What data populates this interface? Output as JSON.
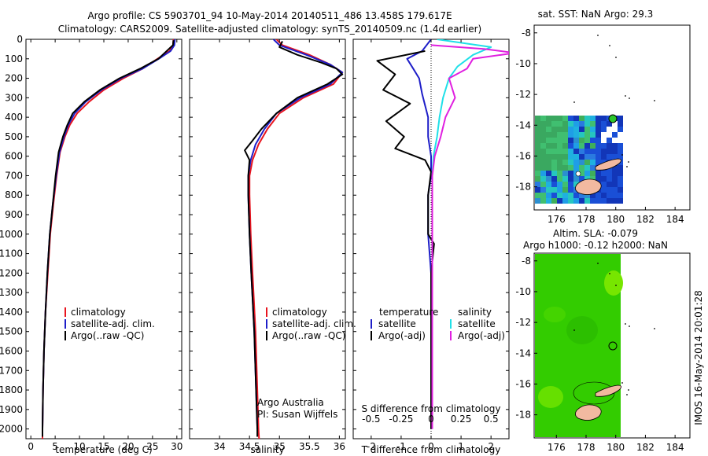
{
  "header": {
    "line1": "Argo profile: CS 5903701_94 10-May-2014 20140511_486 13.458S 179.617E",
    "line2": "Climatology: CARS2009. Satellite-adjusted climatology: synTS_20140509.nc (1.4d earlier)"
  },
  "colors": {
    "climatology": "#e8141e",
    "satellite": "#1e1ec8",
    "argo": "#000000",
    "cyan": "#20e0e8",
    "magenta": "#e020e0"
  },
  "chart_data": [
    {
      "type": "line",
      "id": "temperature",
      "xlabel": "temperature (deg C)",
      "ylabel": "",
      "xlim": [
        -1,
        31
      ],
      "ylim": [
        2050,
        0
      ],
      "xticks": [
        0,
        5,
        10,
        15,
        20,
        25,
        30
      ],
      "yticks": [
        0,
        100,
        200,
        300,
        400,
        500,
        600,
        700,
        800,
        900,
        1000,
        1100,
        1200,
        1300,
        1400,
        1500,
        1600,
        1700,
        1800,
        1900,
        2000
      ],
      "legend": [
        "climatology",
        "satellite-adj. clim.",
        "Argo(..raw -QC)"
      ],
      "series": [
        {
          "name": "climatology",
          "color": "#e8141e",
          "points": [
            [
              29.3,
              0
            ],
            [
              29.2,
              30
            ],
            [
              28.5,
              60
            ],
            [
              26,
              100
            ],
            [
              23,
              150
            ],
            [
              19,
              200
            ],
            [
              15,
              260
            ],
            [
              12,
              320
            ],
            [
              9.5,
              380
            ],
            [
              8,
              440
            ],
            [
              7,
              500
            ],
            [
              6,
              580
            ],
            [
              5.3,
              700
            ],
            [
              4.6,
              850
            ],
            [
              4,
              1000
            ],
            [
              3.5,
              1200
            ],
            [
              3,
              1400
            ],
            [
              2.7,
              1600
            ],
            [
              2.5,
              1800
            ],
            [
              2.4,
              2000
            ],
            [
              2.4,
              2050
            ]
          ]
        },
        {
          "name": "satellite-adj. clim.",
          "color": "#1e1ec8",
          "points": [
            [
              29.6,
              0
            ],
            [
              29.5,
              30
            ],
            [
              28.7,
              60
            ],
            [
              26.3,
              100
            ],
            [
              23,
              150
            ],
            [
              18.5,
              200
            ],
            [
              14.5,
              260
            ],
            [
              11.3,
              320
            ],
            [
              9,
              380
            ],
            [
              7.7,
              440
            ],
            [
              6.8,
              500
            ],
            [
              5.9,
              580
            ],
            [
              5.2,
              700
            ],
            [
              4.5,
              850
            ],
            [
              3.9,
              1000
            ],
            [
              3.4,
              1200
            ],
            [
              3,
              1400
            ],
            [
              2.7,
              1600
            ],
            [
              2.5,
              1800
            ],
            [
              2.4,
              2000
            ]
          ]
        },
        {
          "name": "Argo(..raw -QC)",
          "color": "#000000",
          "points": [
            [
              29.3,
              5
            ],
            [
              29.2,
              30
            ],
            [
              27.5,
              70
            ],
            [
              26.2,
              100
            ],
            [
              22.5,
              150
            ],
            [
              18.2,
              200
            ],
            [
              14.2,
              260
            ],
            [
              11,
              320
            ],
            [
              8.6,
              380
            ],
            [
              7.5,
              440
            ],
            [
              6.6,
              500
            ],
            [
              5.7,
              580
            ],
            [
              5.1,
              700
            ],
            [
              4.5,
              850
            ],
            [
              3.9,
              1000
            ],
            [
              3.4,
              1200
            ],
            [
              3,
              1400
            ],
            [
              2.7,
              1600
            ],
            [
              2.5,
              1800
            ],
            [
              2.4,
              2000
            ],
            [
              2.4,
              2040
            ]
          ]
        }
      ]
    },
    {
      "type": "line",
      "id": "salinity",
      "xlabel": "salinity",
      "ylabel": "",
      "xlim": [
        33.5,
        36.1
      ],
      "ylim": [
        2050,
        0
      ],
      "xticks": [
        34,
        34.5,
        35,
        35.5,
        36
      ],
      "xticklabels": [
        "34",
        "34.5",
        "35",
        "35.5",
        "36"
      ],
      "legend": [
        "climatology",
        "satellite-adj. clim.",
        "Argo(..raw -QC)"
      ],
      "annotations": [
        "Argo Australia",
        "PI: Susan Wijffels"
      ],
      "series": [
        {
          "name": "climatology",
          "color": "#e8141e",
          "points": [
            [
              34.95,
              0
            ],
            [
              35.05,
              30
            ],
            [
              35.5,
              80
            ],
            [
              35.85,
              130
            ],
            [
              36.05,
              170
            ],
            [
              35.9,
              230
            ],
            [
              35.4,
              300
            ],
            [
              35,
              380
            ],
            [
              34.8,
              460
            ],
            [
              34.65,
              540
            ],
            [
              34.55,
              620
            ],
            [
              34.5,
              700
            ],
            [
              34.5,
              800
            ],
            [
              34.52,
              1000
            ],
            [
              34.55,
              1200
            ],
            [
              34.6,
              1500
            ],
            [
              34.63,
              1800
            ],
            [
              34.65,
              2000
            ],
            [
              34.66,
              2050
            ]
          ]
        },
        {
          "name": "satellite-adj. clim.",
          "color": "#1e1ec8",
          "points": [
            [
              34.9,
              0
            ],
            [
              35,
              30
            ],
            [
              35.45,
              80
            ],
            [
              35.85,
              130
            ],
            [
              36.05,
              170
            ],
            [
              35.85,
              230
            ],
            [
              35.35,
              300
            ],
            [
              34.95,
              380
            ],
            [
              34.75,
              460
            ],
            [
              34.6,
              540
            ],
            [
              34.52,
              620
            ],
            [
              34.48,
              700
            ],
            [
              34.48,
              800
            ],
            [
              34.5,
              1000
            ],
            [
              34.53,
              1200
            ],
            [
              34.58,
              1500
            ],
            [
              34.61,
              1800
            ],
            [
              34.63,
              2000
            ]
          ]
        },
        {
          "name": "Argo(..raw -QC)",
          "color": "#000000",
          "points": [
            [
              35.05,
              10
            ],
            [
              35,
              40
            ],
            [
              35.3,
              80
            ],
            [
              35.7,
              120
            ],
            [
              35.95,
              150
            ],
            [
              36.05,
              180
            ],
            [
              35.8,
              230
            ],
            [
              35.3,
              300
            ],
            [
              34.95,
              380
            ],
            [
              34.7,
              460
            ],
            [
              34.55,
              520
            ],
            [
              34.42,
              570
            ],
            [
              34.5,
              620
            ],
            [
              34.48,
              700
            ],
            [
              34.48,
              800
            ],
            [
              34.5,
              1000
            ],
            [
              34.53,
              1200
            ],
            [
              34.58,
              1500
            ],
            [
              34.61,
              1800
            ],
            [
              34.63,
              2000
            ],
            [
              34.63,
              2040
            ]
          ]
        }
      ]
    },
    {
      "type": "line",
      "id": "difference",
      "xlabel": "T difference from climatology",
      "xlabel_top": "S difference from climatology",
      "xlim": [
        -2.6,
        2.6
      ],
      "ylim": [
        2050,
        0
      ],
      "xticks": [
        -2,
        -1,
        0,
        1,
        2
      ],
      "xticks_top": [
        -0.5,
        -0.25,
        0,
        0.25,
        0.5
      ],
      "xticklabels_top": [
        "-0.5",
        "-0.25",
        "0",
        "0.25",
        "0.5"
      ],
      "legend_temperature": {
        "title": "temperature",
        "items": [
          "satellite",
          "Argo(-adj)"
        ]
      },
      "legend_salinity": {
        "title": "salinity",
        "items": [
          "satellite",
          "Argo(-adj)"
        ]
      },
      "series": [
        {
          "name": "T satellite",
          "color": "#1e1ec8",
          "points": [
            [
              0,
              0
            ],
            [
              -0.3,
              60
            ],
            [
              -0.8,
              100
            ],
            [
              -0.6,
              150
            ],
            [
              -0.4,
              200
            ],
            [
              -0.3,
              280
            ],
            [
              -0.1,
              400
            ],
            [
              -0.1,
              500
            ],
            [
              0,
              600
            ],
            [
              0,
              700
            ],
            [
              -0.1,
              800
            ],
            [
              -0.1,
              1000
            ],
            [
              0,
              1200
            ],
            [
              0,
              1500
            ],
            [
              0,
              2000
            ]
          ]
        },
        {
          "name": "T Argo(-adj)",
          "color": "#000000",
          "points": [
            [
              -0.2,
              60
            ],
            [
              -1.8,
              110
            ],
            [
              -1.2,
              180
            ],
            [
              -1.6,
              260
            ],
            [
              -0.7,
              330
            ],
            [
              -1.5,
              420
            ],
            [
              -0.9,
              500
            ],
            [
              -1.2,
              560
            ],
            [
              -0.2,
              620
            ],
            [
              0,
              680
            ],
            [
              -0.1,
              800
            ],
            [
              -0.1,
              1000
            ],
            [
              0.1,
              1050
            ],
            [
              0,
              1200
            ],
            [
              0,
              1500
            ],
            [
              0,
              2000
            ]
          ]
        },
        {
          "name": "S satellite",
          "color": "#20e0e8",
          "points": [
            [
              0.05,
              0
            ],
            [
              0.5,
              40
            ],
            [
              0.35,
              80
            ],
            [
              0.22,
              140
            ],
            [
              0.15,
              200
            ],
            [
              0.1,
              300
            ],
            [
              0.07,
              400
            ],
            [
              0.05,
              500
            ],
            [
              0.02,
              600
            ],
            [
              0.01,
              700
            ],
            [
              0.01,
              1000
            ],
            [
              0.01,
              1500
            ],
            [
              0.01,
              2000
            ]
          ]
        },
        {
          "name": "S Argo(-adj)",
          "color": "#e020e0",
          "points": [
            [
              0,
              30
            ],
            [
              0.45,
              50
            ],
            [
              0.7,
              70
            ],
            [
              0.35,
              100
            ],
            [
              0.3,
              150
            ],
            [
              0.15,
              200
            ],
            [
              0.2,
              300
            ],
            [
              0.12,
              400
            ],
            [
              0.08,
              500
            ],
            [
              0.03,
              600
            ],
            [
              0.01,
              700
            ],
            [
              0.01,
              1000
            ],
            [
              0.01,
              1500
            ],
            [
              0.01,
              2000
            ]
          ]
        }
      ]
    }
  ],
  "map_sst": {
    "title": "sat. SST: NaN Argo: 29.3",
    "xticks": [
      176,
      178,
      180,
      182,
      184
    ],
    "yticks": [
      -8,
      -10,
      -12,
      -14,
      -16,
      -18
    ]
  },
  "map_sla": {
    "title1": "Altim. SLA: -0.079",
    "title2": "Argo h1000: -0.12 h2000: NaN",
    "xticks": [
      176,
      178,
      180,
      182,
      184
    ],
    "yticks": [
      -8,
      -10,
      -12,
      -14,
      -16,
      -18
    ]
  },
  "footer": {
    "timestamp": "IMOS 16-May-2014 20:01:28"
  }
}
